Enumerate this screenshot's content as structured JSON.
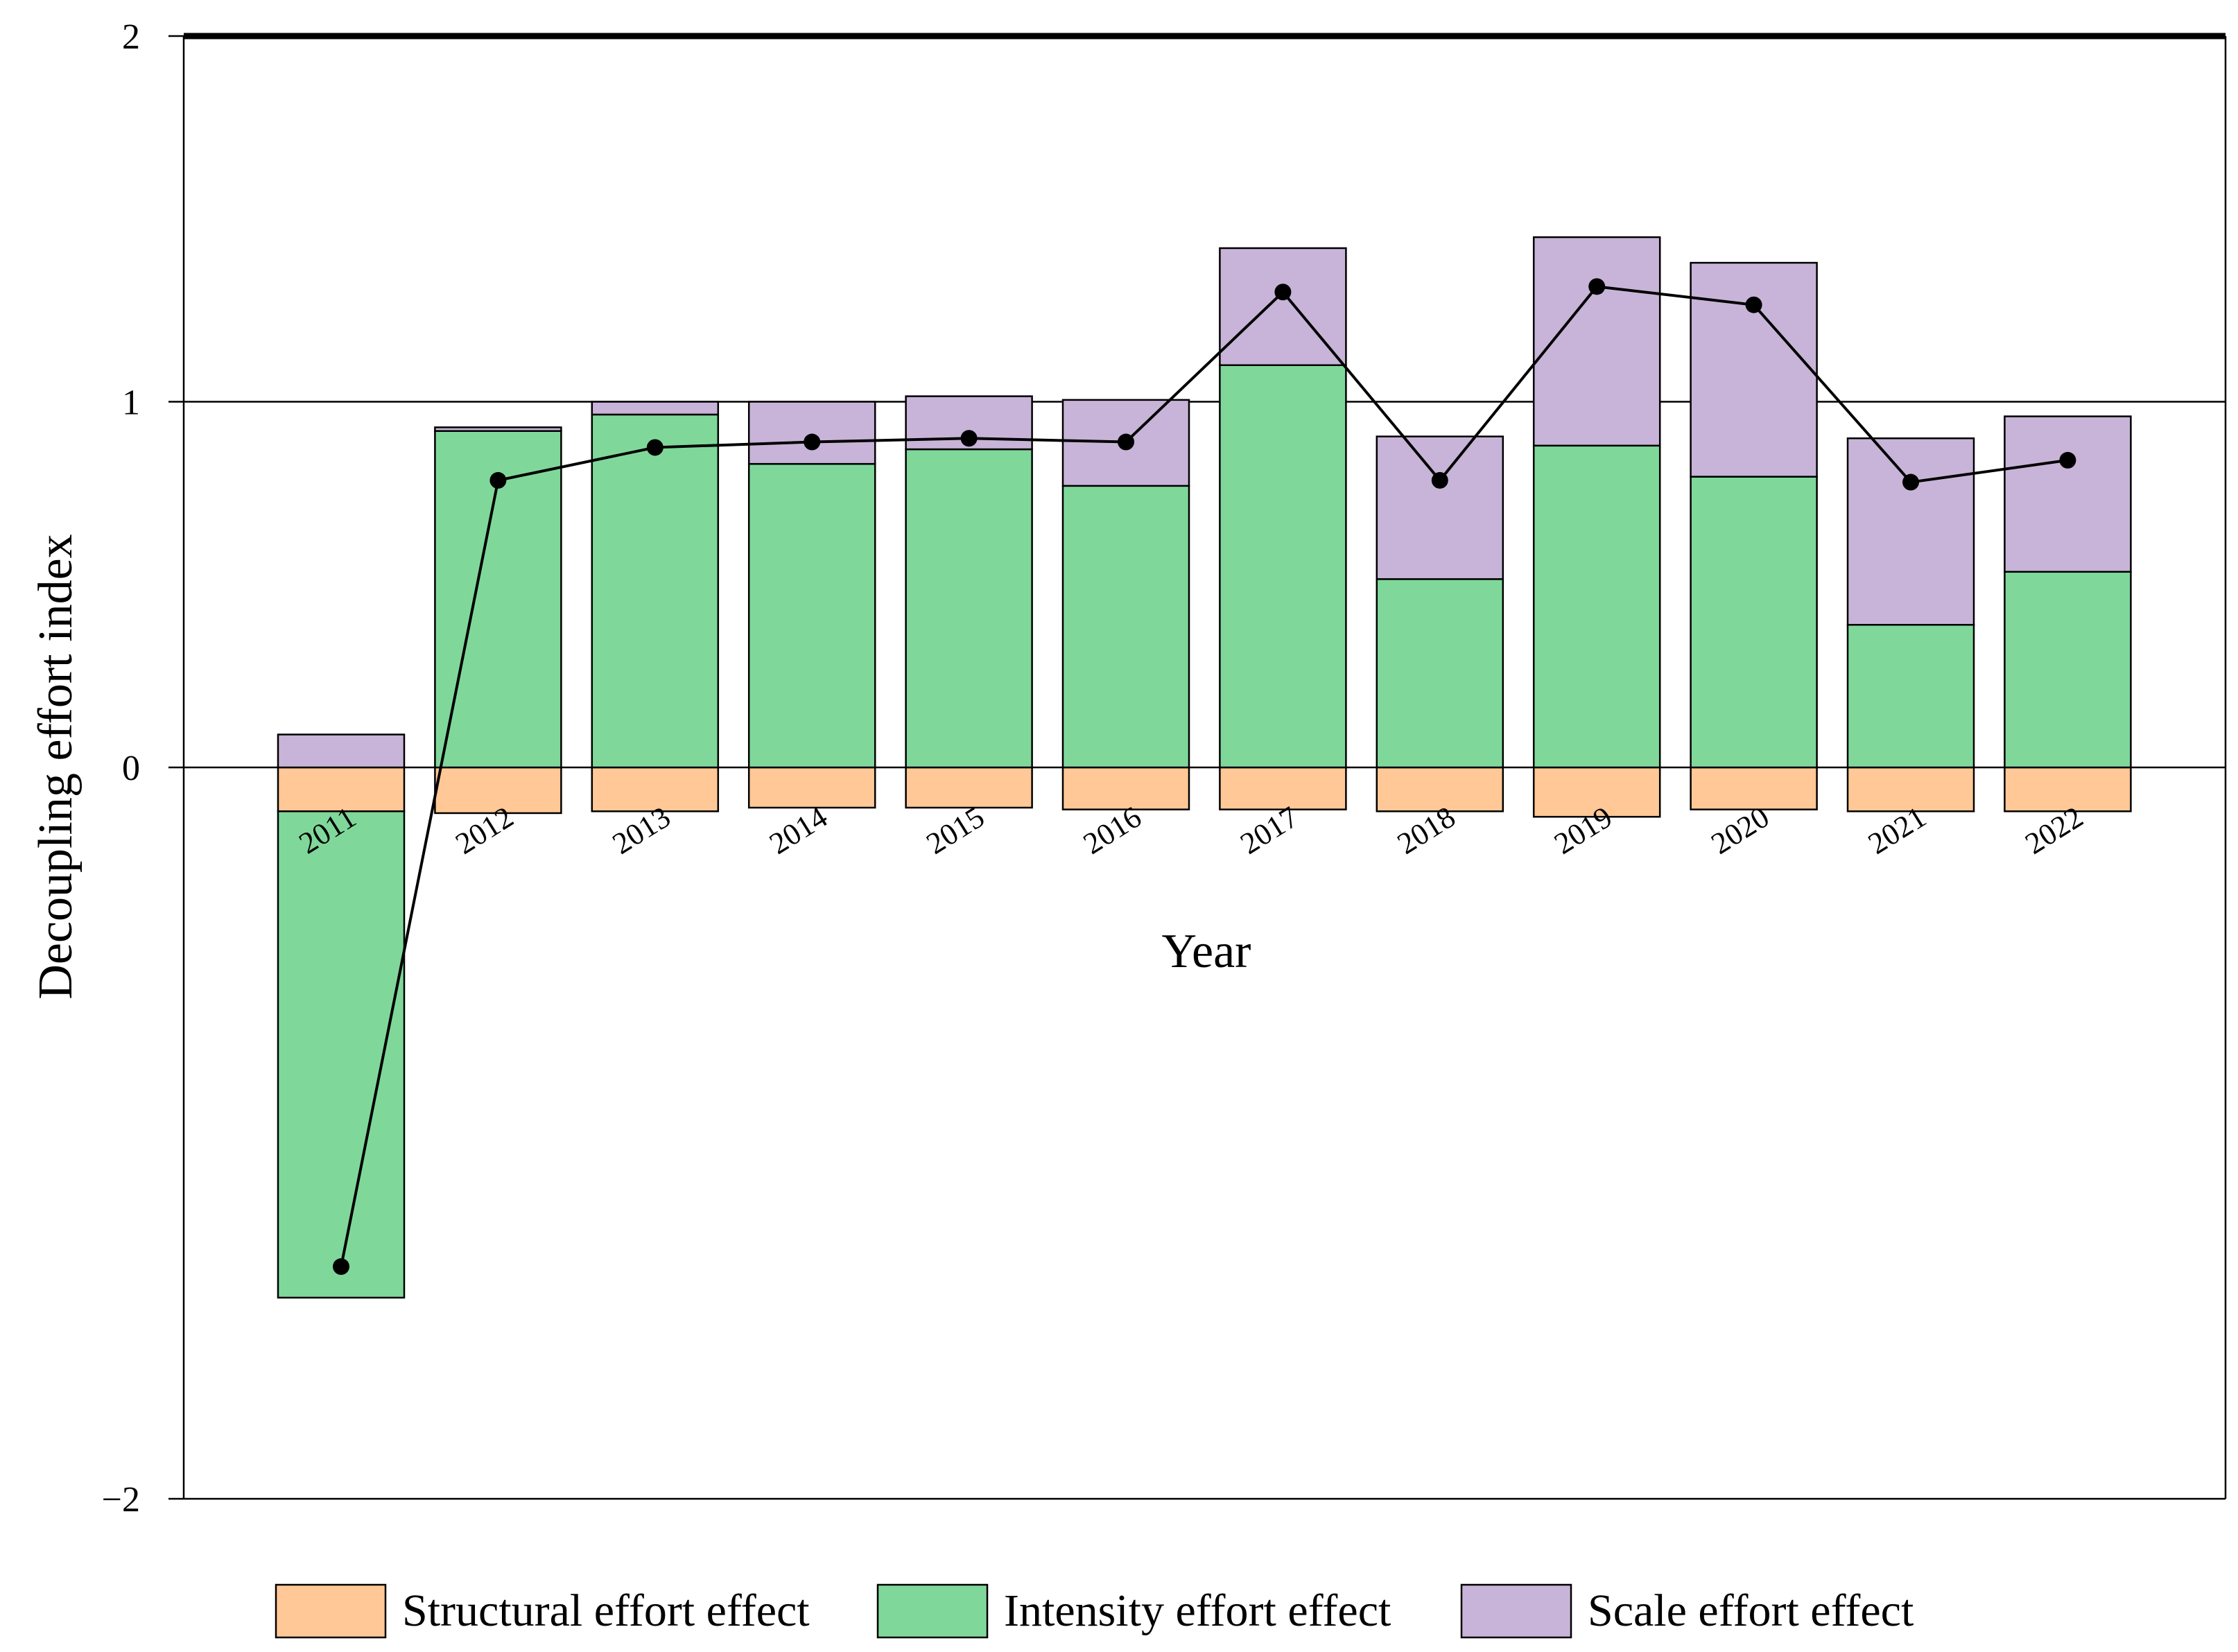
{
  "chart_data": {
    "type": "bar",
    "stacked": true,
    "title": "",
    "xlabel": "Year",
    "ylabel": "Decoupling effort index",
    "ylim": [
      -2,
      2
    ],
    "yticks": [
      2,
      1,
      0,
      -2
    ],
    "ytick_labels": [
      "2",
      "1",
      "0",
      "−2"
    ],
    "categories": [
      "2011",
      "2012",
      "2013",
      "2014",
      "2015",
      "2016",
      "2017",
      "2018",
      "2019",
      "2020",
      "2021",
      "2022"
    ],
    "series": [
      {
        "name": "Structural effort effect",
        "color": "#FFC896",
        "values": [
          -0.12,
          -0.125,
          -0.12,
          -0.11,
          -0.11,
          -0.115,
          -0.115,
          -0.12,
          -0.135,
          -0.115,
          -0.12,
          -0.12
        ]
      },
      {
        "name": "Intensity effort effect",
        "color": "#7FD89A",
        "values": [
          -1.33,
          0.92,
          0.965,
          0.83,
          0.87,
          0.77,
          1.1,
          0.515,
          0.88,
          0.795,
          0.39,
          0.535
        ]
      },
      {
        "name": "Scale effort effect",
        "color": "#C8B4D8",
        "values": [
          0.09,
          0.01,
          0.035,
          0.17,
          0.145,
          0.235,
          0.32,
          0.39,
          0.57,
          0.585,
          0.51,
          0.425
        ]
      }
    ],
    "line": {
      "name": "Decoupling effort index",
      "values": [
        -1.365,
        0.785,
        0.875,
        0.89,
        0.9,
        0.89,
        1.3,
        0.785,
        1.315,
        1.265,
        0.78,
        0.84
      ]
    },
    "reference_lines": [
      0,
      1
    ],
    "legend_position": "bottom"
  }
}
